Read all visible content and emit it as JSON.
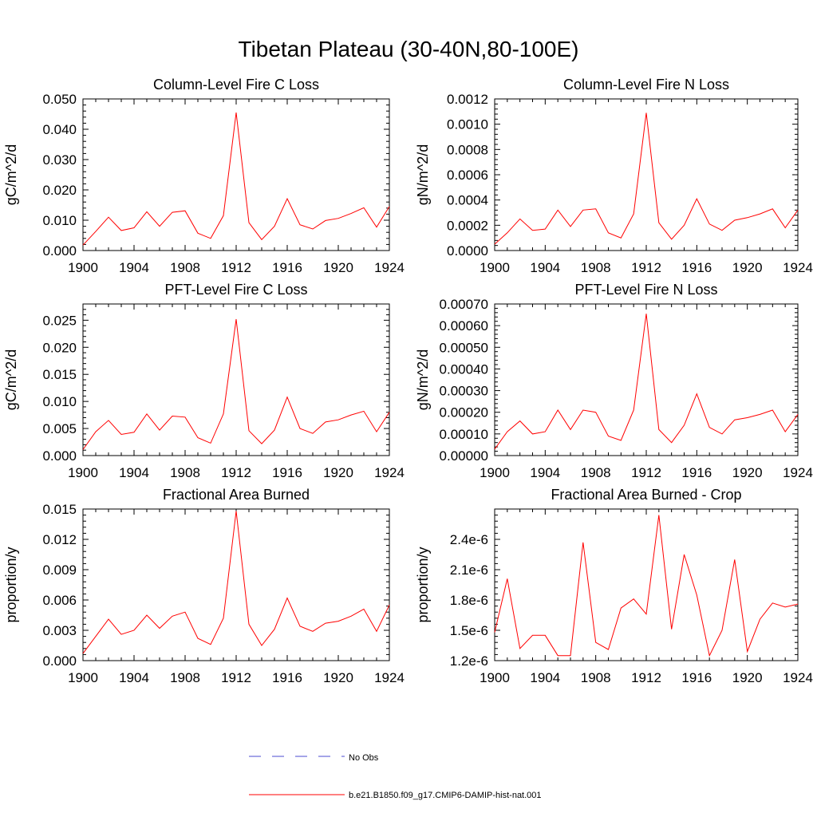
{
  "figure": {
    "title": "Tibetan Plateau (30-40N,80-100E)",
    "legend": [
      {
        "label": "No Obs",
        "color": "#4b4bd0",
        "style": "dashed"
      },
      {
        "label": "b.e21.B1850.f09_g17.CMIP6-DAMIP-hist-nat.001",
        "color": "#ff0000",
        "style": "solid"
      }
    ]
  },
  "chart_data": [
    {
      "type": "line",
      "title": "Column-Level Fire C Loss",
      "ylabel": "gC/m^2/d",
      "xlabel": "",
      "xlim": [
        1900,
        1924
      ],
      "ylim": [
        0,
        0.05
      ],
      "x_ticks": [
        "1900",
        "1904",
        "1908",
        "1912",
        "1916",
        "1920",
        "1924"
      ],
      "y_ticks": [
        "0.000",
        "0.010",
        "0.020",
        "0.030",
        "0.040",
        "0.050"
      ],
      "x": [
        1900,
        1901,
        1902,
        1903,
        1904,
        1905,
        1906,
        1907,
        1908,
        1909,
        1910,
        1911,
        1912,
        1913,
        1914,
        1915,
        1916,
        1917,
        1918,
        1919,
        1920,
        1921,
        1922,
        1923,
        1924
      ],
      "series": [
        {
          "values": [
            0.0018,
            0.0063,
            0.011,
            0.0066,
            0.0075,
            0.0128,
            0.008,
            0.0126,
            0.0131,
            0.0057,
            0.004,
            0.0115,
            0.0455,
            0.0092,
            0.0036,
            0.008,
            0.0171,
            0.0085,
            0.0071,
            0.0099,
            0.0106,
            0.0122,
            0.0141,
            0.0077,
            0.0145
          ],
          "color": "#ff0000"
        }
      ]
    },
    {
      "type": "line",
      "title": "Column-Level Fire N Loss",
      "ylabel": "gN/m^2/d",
      "xlabel": "",
      "xlim": [
        1900,
        1924
      ],
      "ylim": [
        0,
        0.0012
      ],
      "x_ticks": [
        "1900",
        "1904",
        "1908",
        "1912",
        "1916",
        "1920",
        "1924"
      ],
      "y_ticks": [
        "0.0000",
        "0.0002",
        "0.0004",
        "0.0006",
        "0.0008",
        "0.0010",
        "0.0012"
      ],
      "x": [
        1900,
        1901,
        1902,
        1903,
        1904,
        1905,
        1906,
        1907,
        1908,
        1909,
        1910,
        1911,
        1912,
        1913,
        1914,
        1915,
        1916,
        1917,
        1918,
        1919,
        1920,
        1921,
        1922,
        1923,
        1924
      ],
      "series": [
        {
          "values": [
            5e-05,
            0.00014,
            0.00025,
            0.00016,
            0.00017,
            0.00032,
            0.00019,
            0.00032,
            0.00033,
            0.00014,
            0.0001,
            0.00029,
            0.00109,
            0.00022,
            9e-05,
            0.0002,
            0.00041,
            0.00021,
            0.00016,
            0.00024,
            0.00026,
            0.00029,
            0.00033,
            0.00018,
            0.00032
          ],
          "color": "#ff0000"
        }
      ]
    },
    {
      "type": "line",
      "title": "PFT-Level Fire C Loss",
      "ylabel": "gC/m^2/d",
      "xlabel": "",
      "xlim": [
        1900,
        1924
      ],
      "ylim": [
        0,
        0.028
      ],
      "x_ticks": [
        "1900",
        "1904",
        "1908",
        "1912",
        "1916",
        "1920",
        "1924"
      ],
      "y_ticks": [
        "0.000",
        "0.005",
        "0.010",
        "0.015",
        "0.020",
        "0.025"
      ],
      "x": [
        1900,
        1901,
        1902,
        1903,
        1904,
        1905,
        1906,
        1907,
        1908,
        1909,
        1910,
        1911,
        1912,
        1913,
        1914,
        1915,
        1916,
        1917,
        1918,
        1919,
        1920,
        1921,
        1922,
        1923,
        1924
      ],
      "series": [
        {
          "values": [
            0.0011,
            0.0044,
            0.0065,
            0.0039,
            0.0043,
            0.0077,
            0.0047,
            0.0073,
            0.0071,
            0.0033,
            0.0023,
            0.0077,
            0.0252,
            0.0046,
            0.0022,
            0.0047,
            0.0108,
            0.005,
            0.0041,
            0.0062,
            0.0066,
            0.0075,
            0.0082,
            0.0044,
            0.008
          ],
          "color": "#ff0000"
        }
      ]
    },
    {
      "type": "line",
      "title": "PFT-Level Fire N Loss",
      "ylabel": "gN/m^2/d",
      "xlabel": "",
      "xlim": [
        1900,
        1924
      ],
      "ylim": [
        0,
        0.0007
      ],
      "x_ticks": [
        "1900",
        "1904",
        "1908",
        "1912",
        "1916",
        "1920",
        "1924"
      ],
      "y_ticks": [
        "0.00000",
        "0.00010",
        "0.00020",
        "0.00030",
        "0.00040",
        "0.00050",
        "0.00060",
        "0.00070"
      ],
      "x": [
        1900,
        1901,
        1902,
        1903,
        1904,
        1905,
        1906,
        1907,
        1908,
        1909,
        1910,
        1911,
        1912,
        1913,
        1914,
        1915,
        1916,
        1917,
        1918,
        1919,
        1920,
        1921,
        1922,
        1923,
        1924
      ],
      "series": [
        {
          "values": [
            3e-05,
            0.00011,
            0.00016,
            0.0001,
            0.00011,
            0.00021,
            0.00012,
            0.00021,
            0.0002,
            9e-05,
            7e-05,
            0.00021,
            0.000655,
            0.00012,
            6e-05,
            0.00014,
            0.000285,
            0.00013,
            0.0001,
            0.000165,
            0.000175,
            0.00019,
            0.00021,
            0.00011,
            0.00019
          ],
          "color": "#ff0000"
        }
      ]
    },
    {
      "type": "line",
      "title": "Fractional Area Burned",
      "ylabel": "proportion/y",
      "xlabel": "",
      "xlim": [
        1900,
        1924
      ],
      "ylim": [
        0,
        0.015
      ],
      "x_ticks": [
        "1900",
        "1904",
        "1908",
        "1912",
        "1916",
        "1920",
        "1924"
      ],
      "y_ticks": [
        "0.000",
        "0.003",
        "0.006",
        "0.009",
        "0.012",
        "0.015"
      ],
      "x": [
        1900,
        1901,
        1902,
        1903,
        1904,
        1905,
        1906,
        1907,
        1908,
        1909,
        1910,
        1911,
        1912,
        1913,
        1914,
        1915,
        1916,
        1917,
        1918,
        1919,
        1920,
        1921,
        1922,
        1923,
        1924
      ],
      "series": [
        {
          "values": [
            0.0007,
            0.0024,
            0.0041,
            0.0026,
            0.003,
            0.0045,
            0.0032,
            0.0044,
            0.0048,
            0.0022,
            0.0016,
            0.0042,
            0.0148,
            0.0036,
            0.0015,
            0.0031,
            0.0062,
            0.0034,
            0.0029,
            0.0037,
            0.0039,
            0.0044,
            0.0051,
            0.0029,
            0.0055
          ],
          "color": "#ff0000"
        }
      ]
    },
    {
      "type": "line",
      "title": "Fractional Area Burned - Crop",
      "ylabel": "proportion/y",
      "xlabel": "",
      "xlim": [
        1900,
        1924
      ],
      "ylim": [
        1.2e-06,
        2.7e-06
      ],
      "x_ticks": [
        "1900",
        "1904",
        "1908",
        "1912",
        "1916",
        "1920",
        "1924"
      ],
      "y_ticks": [
        "1.2e-6",
        "1.5e-6",
        "1.8e-6",
        "2.1e-6",
        "2.4e-6"
      ],
      "x": [
        1900,
        1901,
        1902,
        1903,
        1904,
        1905,
        1906,
        1907,
        1908,
        1909,
        1910,
        1911,
        1912,
        1913,
        1914,
        1915,
        1916,
        1917,
        1918,
        1919,
        1920,
        1921,
        1922,
        1923,
        1924
      ],
      "series": [
        {
          "values": [
            1.48e-06,
            2.01e-06,
            1.32e-06,
            1.45e-06,
            1.45e-06,
            1.25e-06,
            1.25e-06,
            2.37e-06,
            1.38e-06,
            1.31e-06,
            1.72e-06,
            1.81e-06,
            1.66e-06,
            2.64e-06,
            1.51e-06,
            2.25e-06,
            1.85e-06,
            1.25e-06,
            1.5e-06,
            2.2e-06,
            1.29e-06,
            1.61e-06,
            1.77e-06,
            1.73e-06,
            1.76e-06
          ],
          "color": "#ff0000"
        }
      ]
    }
  ]
}
